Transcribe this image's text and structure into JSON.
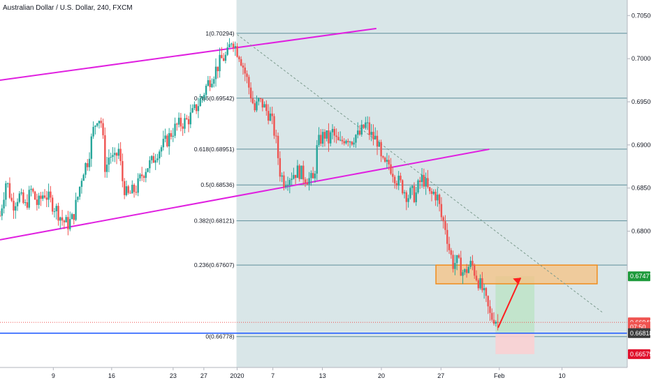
{
  "header": {
    "title": "Australian Dollar / U.S. Dollar, 240, FXCM"
  },
  "colors": {
    "up": "#26a69a",
    "down": "#ef5350",
    "channel": "#e020e0",
    "fib_line": "#5f8e9a",
    "shade": "#d5e3e6",
    "target_zone": "#f5c283",
    "target_border": "#f08c1c",
    "green_box": "#bfe3c9",
    "red_box": "#f9d0d3",
    "horizontal_blue": "#2962ff",
    "arrow": "#ff1f1f"
  },
  "chart_data": {
    "type": "candlestick",
    "title": "Australian Dollar / U.S. Dollar, 240, FXCM",
    "ylim": [
      0.6642,
      0.7068
    ],
    "y_ticks": [
      0.68,
      0.685,
      0.69,
      0.695,
      0.7,
      0.705
    ],
    "y_tick_labels": [
      "0.68000",
      "0.68500",
      "0.69000",
      "0.69500",
      "0.70000",
      "0.70500"
    ],
    "x_ticks": [
      {
        "label": "9",
        "pos": 0.085
      },
      {
        "label": "16",
        "pos": 0.178
      },
      {
        "label": "23",
        "pos": 0.276
      },
      {
        "label": "27",
        "pos": 0.325
      },
      {
        "label": "2020",
        "pos": 0.378
      },
      {
        "label": "7",
        "pos": 0.435
      },
      {
        "label": "13",
        "pos": 0.514
      },
      {
        "label": "20",
        "pos": 0.608
      },
      {
        "label": "27",
        "pos": 0.703
      },
      {
        "label": "Feb",
        "pos": 0.796
      },
      {
        "label": "10",
        "pos": 0.896
      }
    ],
    "price_path": [
      [
        0.0,
        0.6818
      ],
      [
        0.01,
        0.686
      ],
      [
        0.02,
        0.683
      ],
      [
        0.03,
        0.6842
      ],
      [
        0.04,
        0.6828
      ],
      [
        0.05,
        0.6848
      ],
      [
        0.06,
        0.683
      ],
      [
        0.07,
        0.6845
      ],
      [
        0.08,
        0.6835
      ],
      [
        0.09,
        0.6825
      ],
      [
        0.1,
        0.6812
      ],
      [
        0.108,
        0.6808
      ],
      [
        0.116,
        0.6815
      ],
      [
        0.124,
        0.684
      ],
      [
        0.132,
        0.687
      ],
      [
        0.14,
        0.6882
      ],
      [
        0.148,
        0.6915
      ],
      [
        0.156,
        0.6935
      ],
      [
        0.162,
        0.6925
      ],
      [
        0.168,
        0.687
      ],
      [
        0.175,
        0.689
      ],
      [
        0.182,
        0.688
      ],
      [
        0.189,
        0.6895
      ],
      [
        0.196,
        0.6855
      ],
      [
        0.203,
        0.684
      ],
      [
        0.21,
        0.6845
      ],
      [
        0.218,
        0.685
      ],
      [
        0.226,
        0.6865
      ],
      [
        0.234,
        0.6875
      ],
      [
        0.242,
        0.688
      ],
      [
        0.25,
        0.6892
      ],
      [
        0.258,
        0.6898
      ],
      [
        0.266,
        0.6905
      ],
      [
        0.274,
        0.6915
      ],
      [
        0.282,
        0.6922
      ],
      [
        0.29,
        0.6925
      ],
      [
        0.298,
        0.6928
      ],
      [
        0.306,
        0.6935
      ],
      [
        0.314,
        0.6945
      ],
      [
        0.322,
        0.6955
      ],
      [
        0.33,
        0.697
      ],
      [
        0.338,
        0.698
      ],
      [
        0.346,
        0.699
      ],
      [
        0.354,
        0.7
      ],
      [
        0.362,
        0.7003
      ],
      [
        0.37,
        0.7025
      ],
      [
        0.376,
        0.7012
      ],
      [
        0.382,
        0.7005
      ],
      [
        0.388,
        0.699
      ],
      [
        0.394,
        0.6975
      ],
      [
        0.4,
        0.6958
      ],
      [
        0.406,
        0.694
      ],
      [
        0.412,
        0.695
      ],
      [
        0.418,
        0.6948
      ],
      [
        0.424,
        0.694
      ],
      [
        0.43,
        0.6935
      ],
      [
        0.436,
        0.692
      ],
      [
        0.441,
        0.69
      ],
      [
        0.446,
        0.687
      ],
      [
        0.452,
        0.6858
      ],
      [
        0.458,
        0.6862
      ],
      [
        0.464,
        0.6865
      ],
      [
        0.47,
        0.6868
      ],
      [
        0.476,
        0.687
      ],
      [
        0.482,
        0.6866
      ],
      [
        0.488,
        0.6862
      ],
      [
        0.494,
        0.686
      ],
      [
        0.5,
        0.6858
      ],
      [
        0.506,
        0.69
      ],
      [
        0.512,
        0.6908
      ],
      [
        0.518,
        0.6912
      ],
      [
        0.524,
        0.6905
      ],
      [
        0.53,
        0.6915
      ],
      [
        0.536,
        0.6905
      ],
      [
        0.542,
        0.69
      ],
      [
        0.548,
        0.6908
      ],
      [
        0.554,
        0.691
      ],
      [
        0.56,
        0.6905
      ],
      [
        0.566,
        0.6912
      ],
      [
        0.572,
        0.691
      ],
      [
        0.578,
        0.6918
      ],
      [
        0.584,
        0.6925
      ],
      [
        0.59,
        0.6912
      ],
      [
        0.596,
        0.6908
      ],
      [
        0.602,
        0.6905
      ],
      [
        0.608,
        0.688
      ],
      [
        0.614,
        0.6875
      ],
      [
        0.62,
        0.6878
      ],
      [
        0.626,
        0.687
      ],
      [
        0.632,
        0.686
      ],
      [
        0.638,
        0.6855
      ],
      [
        0.644,
        0.6848
      ],
      [
        0.65,
        0.684
      ],
      [
        0.656,
        0.6845
      ],
      [
        0.662,
        0.684
      ],
      [
        0.668,
        0.6855
      ],
      [
        0.674,
        0.6862
      ],
      [
        0.68,
        0.6852
      ],
      [
        0.686,
        0.684
      ],
      [
        0.692,
        0.6845
      ],
      [
        0.698,
        0.6838
      ],
      [
        0.704,
        0.6815
      ],
      [
        0.71,
        0.6805
      ],
      [
        0.716,
        0.678
      ],
      [
        0.722,
        0.6762
      ],
      [
        0.728,
        0.6765
      ],
      [
        0.734,
        0.6758
      ],
      [
        0.74,
        0.675
      ],
      [
        0.746,
        0.6758
      ],
      [
        0.752,
        0.6762
      ],
      [
        0.758,
        0.675
      ],
      [
        0.764,
        0.674
      ],
      [
        0.77,
        0.673
      ],
      [
        0.776,
        0.6715
      ],
      [
        0.782,
        0.67
      ],
      [
        0.788,
        0.67
      ],
      [
        0.794,
        0.6694
      ]
    ],
    "fib_levels": [
      {
        "label": "1(0.70294)",
        "value": 0.70294
      },
      {
        "label": "0.786(0.69542)",
        "value": 0.69542
      },
      {
        "label": "0.618(0.68951)",
        "value": 0.68951
      },
      {
        "label": "0.5(0.68536)",
        "value": 0.68536
      },
      {
        "label": "0.382(0.68121)",
        "value": 0.68121
      },
      {
        "label": "0.236(0.67607)",
        "value": 0.67607
      },
      {
        "label": "0(0.66778)",
        "value": 0.66778
      }
    ],
    "price_tags": [
      {
        "label": "0.67477",
        "value": 0.67477,
        "color": "#1d9a3c"
      },
      {
        "label": "0.66943",
        "value": 0.66943,
        "color": "#ef5350"
      },
      {
        "label": "07:50",
        "value": 0.6689,
        "color": "#ef5350"
      },
      {
        "label": "0.66818",
        "value": 0.66818,
        "color": "#3b3b3b"
      },
      {
        "label": "0.66575",
        "value": 0.66575,
        "color": "#e0102c"
      }
    ],
    "target_zone": {
      "y_top": 0.67607,
      "y_bottom": 0.6739,
      "x_start": 0.695,
      "x_end": 0.952
    },
    "position_box": {
      "entry": 0.66818,
      "target": 0.67477,
      "stop": 0.66575,
      "x_start": 0.79,
      "x_end": 0.852
    },
    "channel_upper": [
      [
        0.0,
        0.6975
      ],
      [
        0.6,
        0.7035
      ]
    ],
    "channel_lower": [
      [
        0.0,
        0.679
      ],
      [
        0.78,
        0.6895
      ]
    ],
    "trend_dashed": [
      [
        0.378,
        0.7028
      ],
      [
        0.962,
        0.6705
      ]
    ],
    "shade_start": 0.377,
    "red_dotted_level": 0.66943,
    "blue_level": 0.66818
  }
}
